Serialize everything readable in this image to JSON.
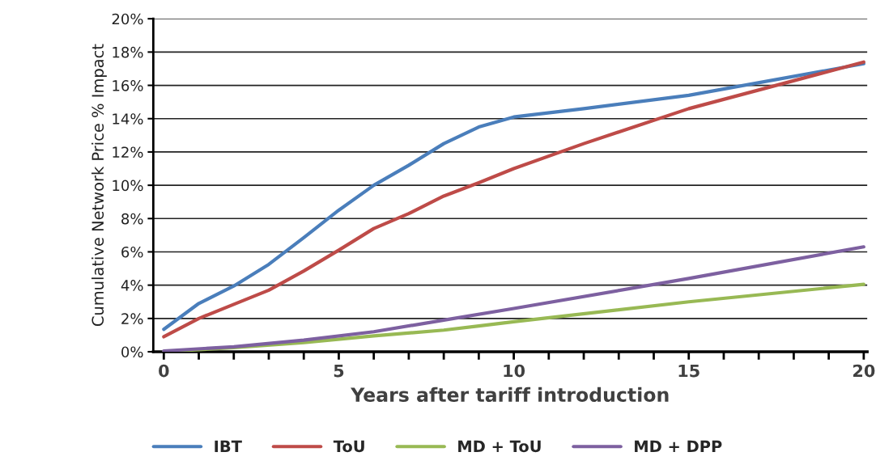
{
  "chart_data": {
    "type": "line",
    "xlabel": "Years after tariff introduction",
    "ylabel": "Cumulative Network Price % Impact",
    "xlim": [
      -0.3,
      20.1
    ],
    "xticks": [
      {
        "value": 0,
        "label": "0"
      },
      {
        "value": 1,
        "label": null
      },
      {
        "value": 2,
        "label": null
      },
      {
        "value": 3,
        "label": null
      },
      {
        "value": 4,
        "label": null
      },
      {
        "value": 5,
        "label": "5"
      },
      {
        "value": 6,
        "label": null
      },
      {
        "value": 7,
        "label": null
      },
      {
        "value": 8,
        "label": null
      },
      {
        "value": 9,
        "label": null
      },
      {
        "value": 10,
        "label": "10"
      },
      {
        "value": 11,
        "label": null
      },
      {
        "value": 12,
        "label": null
      },
      {
        "value": 13,
        "label": null
      },
      {
        "value": 14,
        "label": null
      },
      {
        "value": 15,
        "label": "15"
      },
      {
        "value": 16,
        "label": null
      },
      {
        "value": 17,
        "label": null
      },
      {
        "value": 18,
        "label": null
      },
      {
        "value": 19,
        "label": null
      },
      {
        "value": 20,
        "label": "20"
      }
    ],
    "ylim": [
      0,
      20
    ],
    "yticks": [
      {
        "value": 0,
        "label": "0%"
      },
      {
        "value": 2,
        "label": "2%"
      },
      {
        "value": 4,
        "label": "4%"
      },
      {
        "value": 6,
        "label": "6%"
      },
      {
        "value": 8,
        "label": "8%"
      },
      {
        "value": 10,
        "label": "10%"
      },
      {
        "value": 12,
        "label": "12%"
      },
      {
        "value": 14,
        "label": "14%"
      },
      {
        "value": 16,
        "label": "16%"
      },
      {
        "value": 18,
        "label": "18%"
      },
      {
        "value": 20,
        "label": "20%"
      }
    ],
    "grid": "y",
    "legend": "bottom",
    "marker": "none",
    "line_style": "solid",
    "series": [
      {
        "name": "IBT",
        "color": "#4a7ebb",
        "x": [
          0,
          1,
          2,
          3,
          4,
          5,
          6,
          7,
          8,
          9,
          10,
          12,
          15,
          20
        ],
        "values": [
          1.35,
          2.9,
          3.95,
          5.25,
          6.85,
          8.5,
          10.0,
          11.2,
          12.5,
          13.5,
          14.1,
          14.6,
          15.4,
          17.3
        ]
      },
      {
        "name": "ToU",
        "color": "#be4b48",
        "x": [
          0,
          1,
          2,
          3,
          4,
          5,
          6,
          7,
          8,
          9,
          10,
          12,
          15,
          20
        ],
        "values": [
          0.9,
          2.0,
          2.85,
          3.7,
          4.85,
          6.1,
          7.4,
          8.3,
          9.35,
          10.15,
          11.0,
          12.5,
          14.6,
          17.4
        ]
      },
      {
        "name": "MD + ToU",
        "color": "#98b954",
        "x": [
          0,
          2,
          4,
          6,
          8,
          9,
          10,
          15,
          20
        ],
        "values": [
          0.0,
          0.25,
          0.55,
          0.95,
          1.3,
          1.55,
          1.8,
          3.0,
          4.05
        ]
      },
      {
        "name": "MD + DPP",
        "color": "#7d60a0",
        "x": [
          0,
          2,
          4,
          6,
          8,
          10,
          15,
          20
        ],
        "values": [
          0.05,
          0.3,
          0.7,
          1.2,
          1.9,
          2.6,
          4.4,
          6.3
        ]
      }
    ]
  }
}
